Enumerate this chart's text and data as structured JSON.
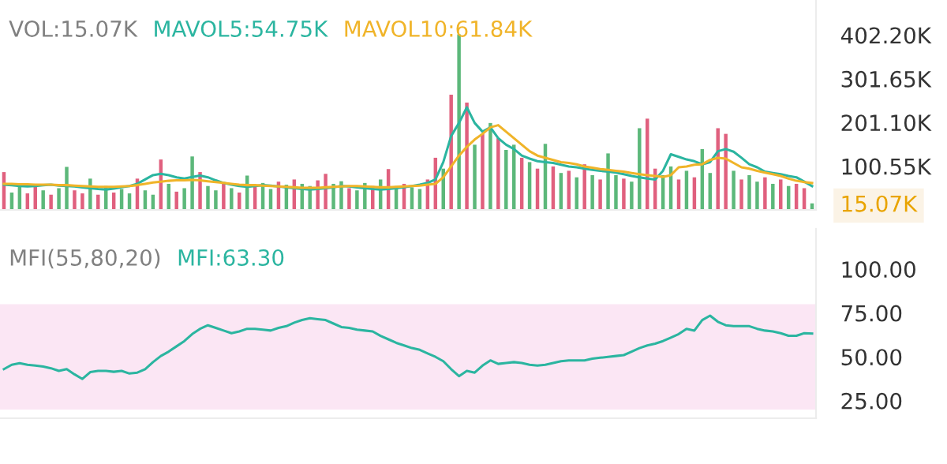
{
  "chart_data": [
    {
      "type": "bar",
      "title": "VOL:15.07K",
      "tick_labels": "y",
      "categories": [
        null,
        null,
        null,
        null,
        null,
        null,
        null,
        null,
        null,
        null,
        null,
        null,
        null,
        null,
        null,
        null,
        null,
        null,
        null,
        null,
        null,
        null,
        null,
        null,
        null,
        null,
        null,
        null,
        null,
        null,
        null,
        null,
        null,
        null,
        null,
        null,
        null,
        null,
        null,
        null,
        null,
        null,
        null,
        null,
        null,
        null,
        null,
        null,
        null,
        null,
        null,
        null,
        null,
        null,
        null,
        null,
        null,
        null,
        null,
        null,
        null,
        null,
        null,
        null,
        null,
        null,
        null,
        null,
        null,
        null,
        null,
        null,
        null,
        null,
        null,
        null,
        null,
        null,
        null,
        null,
        null,
        null,
        null,
        null,
        null,
        null,
        null,
        null,
        null,
        null,
        null,
        null,
        null,
        null,
        null,
        null,
        null,
        null,
        null,
        null,
        null,
        null,
        null,
        null
      ],
      "ylim": [
        0,
        483
      ],
      "yticks": [
        {
          "value": 402.2,
          "label": "402.20K"
        },
        {
          "value": 301.65,
          "label": "301.65K"
        },
        {
          "value": 201.1,
          "label": "201.10K"
        },
        {
          "value": 100.55,
          "label": "100.55K"
        },
        {
          "value": 15.07,
          "label": "15.07K"
        }
      ],
      "series": [
        {
          "type": "bar",
          "values": [
            87,
            40,
            55,
            38,
            60,
            45,
            35,
            50,
            99,
            45,
            38,
            72,
            35,
            55,
            40,
            48,
            38,
            72,
            45,
            35,
            116,
            60,
            42,
            50,
            123,
            87,
            55,
            45,
            60,
            50,
            40,
            79,
            55,
            62,
            48,
            65,
            58,
            70,
            60,
            55,
            68,
            83,
            60,
            66,
            50,
            45,
            62,
            55,
            70,
            94,
            55,
            60,
            52,
            48,
            70,
            120,
            95,
            265,
            404,
            247,
            150,
            175,
            200,
            165,
            138,
            150,
            120,
            110,
            95,
            152,
            100,
            85,
            90,
            75,
            105,
            80,
            70,
            130,
            80,
            72,
            65,
            188,
            210,
            95,
            80,
            100,
            70,
            90,
            75,
            140,
            85,
            188,
            175,
            90,
            70,
            80,
            65,
            75,
            60,
            70,
            55,
            60,
            50,
            15.07
          ],
          "colors": [
            "#e0607e",
            "#5cb87a",
            "#5cb87a",
            "#e0607e",
            "#e0607e",
            "#5cb87a",
            "#e0607e",
            "#5cb87a",
            "#5cb87a",
            "#e0607e",
            "#e0607e",
            "#5cb87a",
            "#e0607e",
            "#5cb87a",
            "#e0607e",
            "#5cb87a",
            "#5cb87a",
            "#e0607e",
            "#5cb87a",
            "#5cb87a",
            "#e0607e",
            "#5cb87a",
            "#e0607e",
            "#5cb87a",
            "#5cb87a",
            "#e0607e",
            "#5cb87a",
            "#5cb87a",
            "#e0607e",
            "#5cb87a",
            "#e0607e",
            "#5cb87a",
            "#e0607e",
            "#5cb87a",
            "#5cb87a",
            "#e0607e",
            "#5cb87a",
            "#e0607e",
            "#5cb87a",
            "#5cb87a",
            "#e0607e",
            "#e0607e",
            "#5cb87a",
            "#5cb87a",
            "#e0607e",
            "#5cb87a",
            "#5cb87a",
            "#e0607e",
            "#5cb87a",
            "#e0607e",
            "#5cb87a",
            "#e0607e",
            "#5cb87a",
            "#5cb87a",
            "#e0607e",
            "#e0607e",
            "#5cb87a",
            "#e0607e",
            "#5cb87a",
            "#e0607e",
            "#5cb87a",
            "#e0607e",
            "#5cb87a",
            "#e0607e",
            "#5cb87a",
            "#5cb87a",
            "#e0607e",
            "#5cb87a",
            "#e0607e",
            "#5cb87a",
            "#e0607e",
            "#5cb87a",
            "#e0607e",
            "#5cb87a",
            "#e0607e",
            "#5cb87a",
            "#e0607e",
            "#5cb87a",
            "#5cb87a",
            "#e0607e",
            "#5cb87a",
            "#5cb87a",
            "#e0607e",
            "#e0607e",
            "#5cb87a",
            "#5cb87a",
            "#e0607e",
            "#5cb87a",
            "#e0607e",
            "#5cb87a",
            "#5cb87a",
            "#e0607e",
            "#e0607e",
            "#5cb87a",
            "#e0607e",
            "#5cb87a",
            "#5cb87a",
            "#e0607e",
            "#5cb87a",
            "#e0607e",
            "#5cb87a",
            "#e0607e",
            "#e0607e",
            "#5cb87a"
          ]
        },
        {
          "type": "line",
          "name": "MAVOL5:54.75K",
          "color": "#2bb5a0",
          "values": [
            58,
            57,
            55,
            54,
            55,
            57,
            58,
            56,
            55,
            54,
            52,
            50,
            48,
            47,
            49,
            52,
            55,
            60,
            70,
            80,
            83,
            80,
            75,
            72,
            76,
            79,
            75,
            68,
            62,
            58,
            55,
            53,
            55,
            57,
            56,
            54,
            52,
            50,
            48,
            47,
            48,
            50,
            52,
            55,
            54,
            52,
            50,
            48,
            47,
            48,
            50,
            52,
            55,
            58,
            62,
            70,
            110,
            170,
            200,
            236,
            200,
            180,
            190,
            165,
            150,
            140,
            125,
            118,
            112,
            110,
            108,
            104,
            100,
            98,
            95,
            92,
            90,
            88,
            86,
            82,
            78,
            75,
            72,
            70,
            90,
            128,
            122,
            116,
            112,
            105,
            110,
            135,
            140,
            134,
            120,
            105,
            98,
            88,
            85,
            82,
            78,
            75,
            65,
            54.75
          ]
        },
        {
          "type": "line",
          "name": "MAVOL10:61.84K",
          "color": "#f0b429",
          "values": [
            60,
            60,
            59,
            59,
            58,
            58,
            58,
            57,
            57,
            56,
            55,
            54,
            53,
            53,
            53,
            54,
            55,
            57,
            60,
            63,
            65,
            67,
            68,
            68,
            69,
            68,
            66,
            64,
            62,
            60,
            58,
            57,
            57,
            56,
            55,
            54,
            53,
            52,
            51,
            51,
            51,
            52,
            53,
            54,
            55,
            55,
            54,
            53,
            52,
            52,
            53,
            54,
            55,
            56,
            58,
            60,
            75,
            100,
            125,
            145,
            162,
            175,
            190,
            195,
            180,
            165,
            150,
            135,
            125,
            120,
            115,
            110,
            108,
            105,
            100,
            97,
            94,
            92,
            90,
            88,
            85,
            82,
            80,
            78,
            76,
            80,
            98,
            100,
            104,
            105,
            115,
            120,
            118,
            108,
            98,
            95,
            90,
            86,
            82,
            78,
            72,
            67,
            64,
            61.84
          ]
        }
      ]
    },
    {
      "type": "line",
      "title": "MFI(55,80,20)",
      "tick_labels": "y",
      "categories": [
        null,
        null,
        null,
        null,
        null,
        null,
        null,
        null,
        null,
        null,
        null,
        null,
        null,
        null,
        null,
        null,
        null,
        null,
        null,
        null,
        null,
        null,
        null,
        null,
        null,
        null,
        null,
        null,
        null,
        null,
        null,
        null,
        null,
        null,
        null,
        null,
        null,
        null,
        null,
        null,
        null,
        null,
        null,
        null,
        null,
        null,
        null,
        null,
        null,
        null,
        null,
        null,
        null,
        null,
        null,
        null,
        null,
        null,
        null,
        null,
        null,
        null,
        null,
        null,
        null,
        null,
        null,
        null,
        null,
        null,
        null,
        null,
        null,
        null,
        null,
        null,
        null,
        null,
        null,
        null,
        null,
        null,
        null,
        null,
        null,
        null,
        null,
        null,
        null,
        null,
        null,
        null,
        null,
        null,
        null,
        null,
        null,
        null,
        null,
        null,
        null,
        null,
        null,
        null
      ],
      "ylim": [
        15,
        123
      ],
      "yticks": [
        {
          "value": 100,
          "label": "100.00"
        },
        {
          "value": 75,
          "label": "75.00"
        },
        {
          "value": 50,
          "label": "50.00"
        },
        {
          "value": 25,
          "label": "25.00"
        }
      ],
      "bands": [
        {
          "axis": "y",
          "from": 20,
          "to": 80,
          "color": "#fbe6f4"
        }
      ],
      "series": [
        {
          "name": "MFI:63.30",
          "color": "#2bb5a0",
          "values": [
            43,
            45.5,
            46.4,
            45.5,
            45,
            44.5,
            43.5,
            42,
            43,
            40,
            37.4,
            41.3,
            42,
            42,
            41.5,
            42,
            40.5,
            41,
            43,
            47,
            50.5,
            53,
            56,
            59,
            63,
            66,
            68,
            66.5,
            65,
            63.5,
            64.5,
            66,
            66,
            65.5,
            65,
            66.5,
            67.5,
            69.5,
            71,
            72,
            71.5,
            71,
            69,
            67,
            66.5,
            65.5,
            65,
            64.5,
            62,
            60,
            58,
            56.5,
            55,
            54,
            52,
            50,
            47.5,
            43,
            39,
            42,
            41,
            45,
            48,
            46,
            46.5,
            47,
            46.5,
            45.5,
            45,
            45.5,
            46.5,
            47.5,
            48,
            48,
            48,
            49,
            49.5,
            50,
            50.5,
            51,
            53,
            55,
            56.5,
            57.5,
            59,
            61,
            63,
            66,
            65,
            71,
            73.5,
            70,
            68,
            67.5,
            67.5,
            67.5,
            66,
            65,
            64.5,
            63.5,
            62,
            62,
            63.5,
            63.3
          ]
        }
      ]
    }
  ]
}
